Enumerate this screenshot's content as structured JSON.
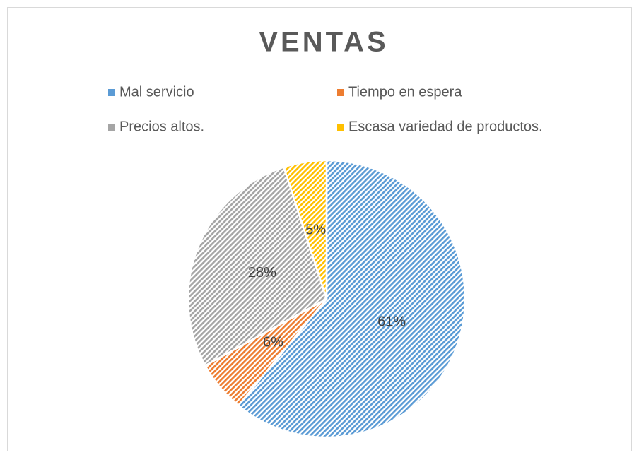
{
  "chart_data": {
    "type": "pie",
    "title": "VENTAS",
    "categories": [
      "Mal servicio",
      "Tiempo en espera",
      "Precios altos.",
      "Escasa variedad de productos."
    ],
    "values": [
      61,
      6,
      28,
      5
    ],
    "value_labels": [
      "61%",
      "6%",
      "28%",
      "5%"
    ],
    "colors": [
      "#5b9bd5",
      "#ed7d31",
      "#a5a5a5",
      "#ffc000"
    ],
    "legend": "top"
  }
}
